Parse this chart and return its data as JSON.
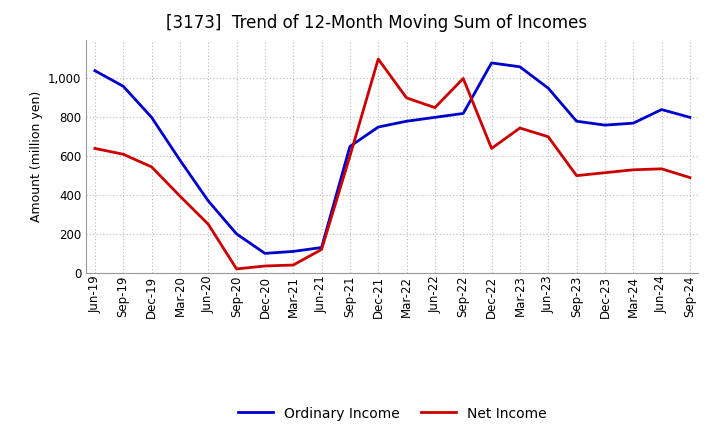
{
  "title": "[3173]  Trend of 12-Month Moving Sum of Incomes",
  "ylabel": "Amount (million yen)",
  "x_labels": [
    "Jun-19",
    "Sep-19",
    "Dec-19",
    "Mar-20",
    "Jun-20",
    "Sep-20",
    "Dec-20",
    "Mar-21",
    "Jun-21",
    "Sep-21",
    "Dec-21",
    "Mar-22",
    "Jun-22",
    "Sep-22",
    "Dec-22",
    "Mar-23",
    "Jun-23",
    "Sep-23",
    "Dec-23",
    "Mar-24",
    "Jun-24",
    "Sep-24"
  ],
  "ordinary_income": [
    1040,
    960,
    800,
    580,
    370,
    200,
    100,
    110,
    130,
    650,
    750,
    780,
    800,
    820,
    1080,
    1060,
    950,
    780,
    760,
    770,
    840,
    800
  ],
  "net_income": [
    640,
    610,
    545,
    395,
    250,
    20,
    35,
    40,
    120,
    600,
    1100,
    900,
    850,
    1000,
    640,
    745,
    700,
    500,
    515,
    530,
    535,
    490
  ],
  "ordinary_income_color": "#0000cc",
  "net_income_color": "#cc0000",
  "ylim": [
    0,
    1200
  ],
  "yticks": [
    0,
    200,
    400,
    600,
    800,
    1000
  ],
  "background_color": "#ffffff",
  "grid_color": "#bbbbbb",
  "title_fontsize": 12,
  "label_fontsize": 9,
  "tick_fontsize": 8.5,
  "legend_ordinary": "Ordinary Income",
  "legend_net": "Net Income"
}
